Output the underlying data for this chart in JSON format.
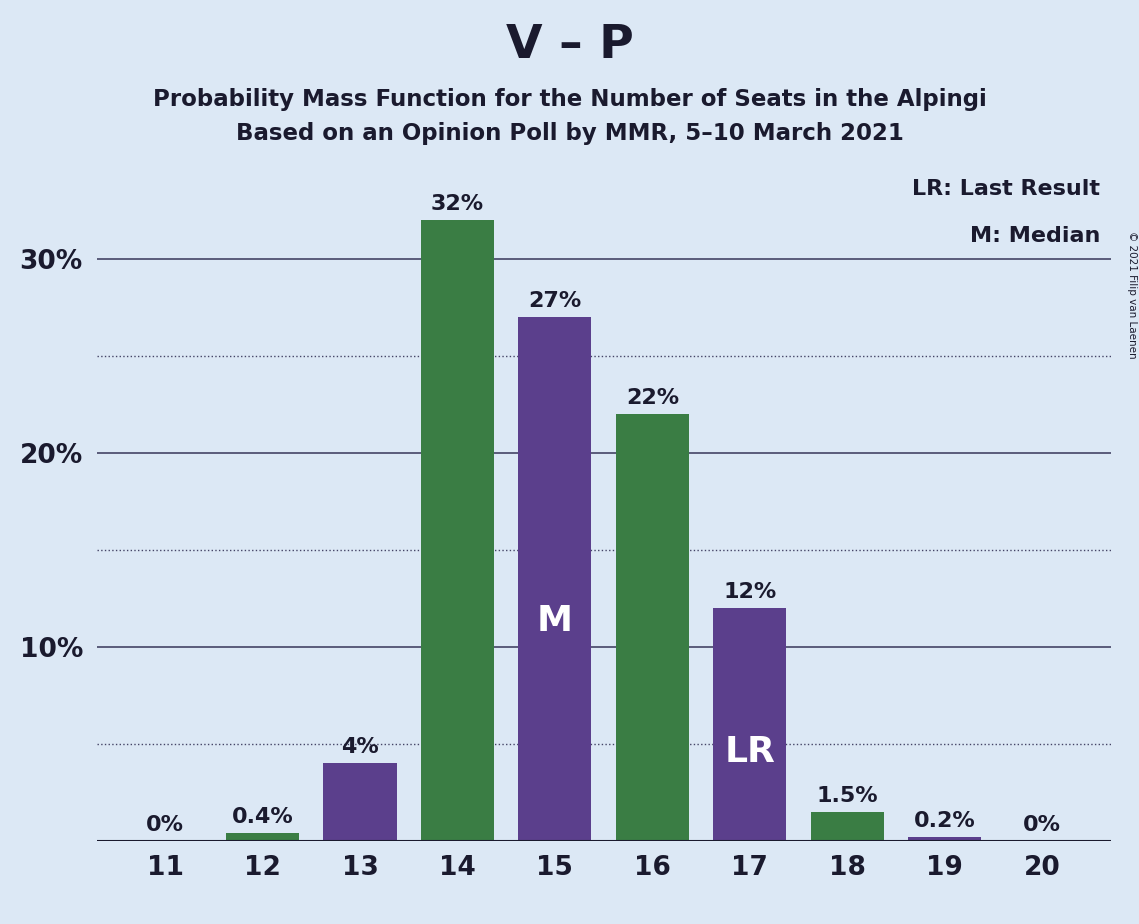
{
  "title_main": "V – P",
  "title_sub1": "Probability Mass Function for the Number of Seats in the Alpingi",
  "title_sub2": "Based on an Opinion Poll by MMR, 5–10 March 2021",
  "copyright": "© 2021 Filip van Laenen",
  "seats": [
    11,
    12,
    13,
    14,
    15,
    16,
    17,
    18,
    19,
    20
  ],
  "values": [
    0.0,
    0.4,
    4.0,
    32.0,
    27.0,
    22.0,
    12.0,
    1.5,
    0.2,
    0.0
  ],
  "colors": [
    "#3a7d44",
    "#3a7d44",
    "#5b3f8c",
    "#3a7d44",
    "#5b3f8c",
    "#3a7d44",
    "#5b3f8c",
    "#3a7d44",
    "#5b3f8c",
    "#3a7d44"
  ],
  "labels": [
    "0%",
    "0.4%",
    "4%",
    "32%",
    "27%",
    "22%",
    "12%",
    "1.5%",
    "0.2%",
    "0%"
  ],
  "median_seat": 15,
  "lr_seat": 17,
  "background_color": "#dce8f5",
  "label_color": "#1a1a2e",
  "ylim": [
    0,
    35
  ],
  "solid_yticks": [
    10,
    20,
    30
  ],
  "solid_ytick_labels": [
    "10%",
    "20%",
    "30%"
  ],
  "dotted_yticks": [
    5,
    15,
    25
  ],
  "legend_text1": "LR: Last Result",
  "legend_text2": "M: Median",
  "grid_color": "#444466"
}
